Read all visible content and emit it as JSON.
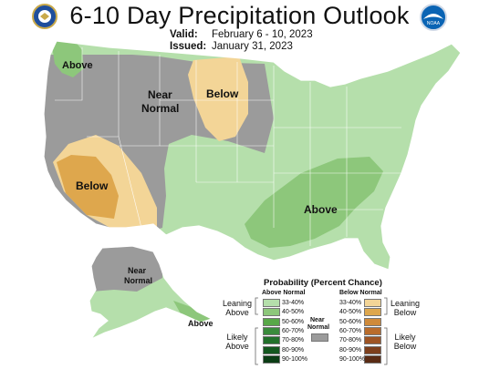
{
  "title": "6-10 Day Precipitation Outlook",
  "valid_label": "Valid:",
  "valid_dates": "February 6 - 10, 2023",
  "issued_label": "Issued:",
  "issued_date": "January 31, 2023",
  "logo_right_text": "NOAA",
  "colors": {
    "above_33_40": "#b5dfab",
    "above_40_50": "#8dc77b",
    "above_50_60": "#58a848",
    "above_60_70": "#3a8b3c",
    "above_70_80": "#22702b",
    "above_80_90": "#14571f",
    "above_90_100": "#0b3d15",
    "below_33_40": "#f3d597",
    "below_40_50": "#dea74d",
    "below_50_60": "#cf8a3a",
    "below_60_70": "#b96c2c",
    "below_70_80": "#9e5424",
    "below_80_90": "#7d3f1c",
    "below_90_100": "#5a2c15",
    "near_normal": "#9b9b9b"
  },
  "map_labels": {
    "pnw_above": "Above",
    "near_normal_1": "Near",
    "near_normal_2": "Normal",
    "north_below": "Below",
    "sw_below": "Below",
    "se_above": "Above",
    "ak_near_1": "Near",
    "ak_near_2": "Normal",
    "ak_above": "Above"
  },
  "legend": {
    "title": "Probability (Percent Chance)",
    "above_header": "Above Normal",
    "below_header": "Below Normal",
    "near_header_1": "Near",
    "near_header_2": "Normal",
    "leaning_above_1": "Leaning",
    "leaning_above_2": "Above",
    "likely_above_1": "Likely",
    "likely_above_2": "Above",
    "leaning_below_1": "Leaning",
    "leaning_below_2": "Below",
    "likely_below_1": "Likely",
    "likely_below_2": "Below",
    "above_items": [
      "33-40%",
      "40-50%",
      "50-60%",
      "60-70%",
      "70-80%",
      "80-90%",
      "90-100%"
    ],
    "below_items": [
      "33-40%",
      "40-50%",
      "50-60%",
      "60-70%",
      "70-80%",
      "80-90%",
      "90-100%"
    ]
  }
}
